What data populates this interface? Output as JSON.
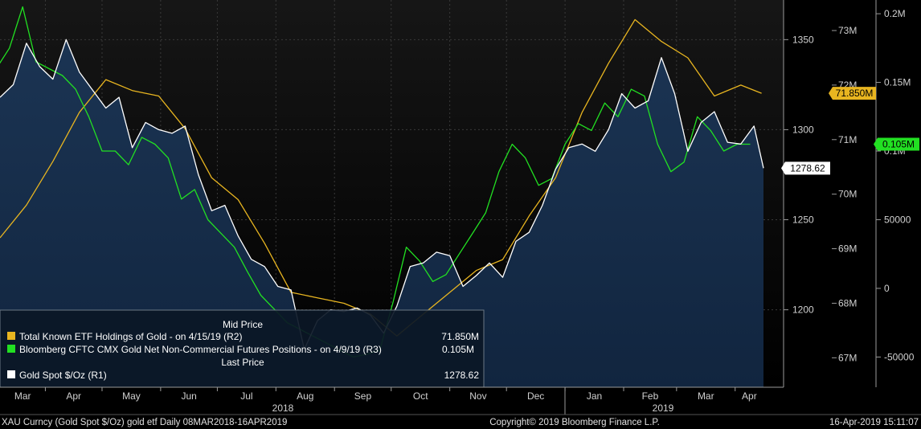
{
  "chart_data": {
    "type": "line",
    "legend": {
      "header_mid": "Mid Price",
      "header_last": "Last Price",
      "entries": [
        {
          "label": "Total Known ETF Holdings of Gold -  on 4/15/19  (R2)",
          "value": "71.850M",
          "color": "#e8b520"
        },
        {
          "label": "Bloomberg CFTC CMX Gold Net Non-Commercial Futures Positions -  on 4/9/19  (R3)",
          "value": "0.105M",
          "color": "#22e022"
        },
        {
          "label": "Gold Spot $/Oz  (R1)",
          "value": "1278.62",
          "color": "#ffffff"
        }
      ]
    },
    "axes": {
      "r1": {
        "ticks": [
          "1350",
          "1300",
          "1250",
          "1200"
        ],
        "tick_values": [
          1350,
          1300,
          1250,
          1200
        ],
        "ylim": [
          1157,
          1372
        ]
      },
      "r2": {
        "ticks": [
          "73M",
          "72M",
          "71M",
          "70M",
          "69M",
          "68M",
          "67M"
        ],
        "tick_values": [
          73,
          72,
          71,
          70,
          69,
          68,
          67
        ],
        "ylim": [
          66.46,
          73.56
        ]
      },
      "r3": {
        "ticks": [
          "0.2M",
          "0.15M",
          "0.1M",
          "50000",
          "0",
          "-50000"
        ],
        "tick_values": [
          200000,
          150000,
          100000,
          50000,
          0,
          -50000
        ],
        "ylim": [
          -72000,
          210000
        ]
      }
    },
    "x_months": [
      "Mar",
      "Apr",
      "May",
      "Jun",
      "Jul",
      "Aug",
      "Sep",
      "Oct",
      "Nov",
      "Dec",
      "Jan",
      "Feb",
      "Mar",
      "Apr"
    ],
    "x_years": [
      "2018",
      "2019"
    ],
    "tags": [
      {
        "text": "71.850M",
        "series": "etf"
      },
      {
        "text": "0.105M",
        "series": "cftc"
      },
      {
        "text": "1278.62",
        "series": "gold"
      }
    ],
    "series": [
      {
        "key": "gold",
        "axis": "r1",
        "color": "#ffffff",
        "x": [
          "2018-03-08",
          "2018-03-15",
          "2018-03-22",
          "2018-03-29",
          "2018-04-05",
          "2018-04-12",
          "2018-04-19",
          "2018-04-26",
          "2018-05-03",
          "2018-05-10",
          "2018-05-17",
          "2018-05-24",
          "2018-05-31",
          "2018-06-07",
          "2018-06-14",
          "2018-06-21",
          "2018-06-28",
          "2018-07-05",
          "2018-07-12",
          "2018-07-19",
          "2018-07-26",
          "2018-08-02",
          "2018-08-09",
          "2018-08-16",
          "2018-08-23",
          "2018-08-30",
          "2018-09-06",
          "2018-09-13",
          "2018-09-20",
          "2018-09-27",
          "2018-10-04",
          "2018-10-11",
          "2018-10-18",
          "2018-10-25",
          "2018-11-01",
          "2018-11-08",
          "2018-11-15",
          "2018-11-22",
          "2018-11-29",
          "2018-12-06",
          "2018-12-13",
          "2018-12-20",
          "2018-12-27",
          "2019-01-03",
          "2019-01-10",
          "2019-01-17",
          "2019-01-24",
          "2019-01-31",
          "2019-02-07",
          "2019-02-14",
          "2019-02-21",
          "2019-02-28",
          "2019-03-07",
          "2019-03-14",
          "2019-03-21",
          "2019-03-28",
          "2019-04-04",
          "2019-04-11",
          "2019-04-16"
        ],
        "y": [
          1318,
          1325,
          1348,
          1335,
          1328,
          1350,
          1332,
          1322,
          1312,
          1318,
          1290,
          1304,
          1300,
          1298,
          1302,
          1275,
          1255,
          1258,
          1241,
          1228,
          1224,
          1213,
          1211,
          1178,
          1194,
          1200,
          1199,
          1201,
          1197,
          1187,
          1202,
          1224,
          1226,
          1232,
          1230,
          1213,
          1219,
          1226,
          1218,
          1238,
          1243,
          1258,
          1278,
          1290,
          1292,
          1288,
          1300,
          1320,
          1312,
          1316,
          1340,
          1320,
          1288,
          1304,
          1310,
          1293,
          1292,
          1302,
          1278.62
        ]
      },
      {
        "key": "etf",
        "axis": "r2",
        "color": "#e8b520",
        "x": [
          "2018-03-08",
          "2018-03-22",
          "2018-04-05",
          "2018-04-19",
          "2018-05-03",
          "2018-05-17",
          "2018-05-31",
          "2018-06-14",
          "2018-06-28",
          "2018-07-12",
          "2018-07-26",
          "2018-08-09",
          "2018-08-23",
          "2018-09-06",
          "2018-09-20",
          "2018-10-04",
          "2018-10-18",
          "2018-11-01",
          "2018-11-15",
          "2018-11-29",
          "2018-12-13",
          "2018-12-27",
          "2019-01-10",
          "2019-01-24",
          "2019-02-07",
          "2019-02-21",
          "2019-03-07",
          "2019-03-21",
          "2019-04-04",
          "2019-04-15"
        ],
        "y": [
          69.2,
          69.8,
          70.6,
          71.5,
          72.1,
          71.9,
          71.8,
          71.2,
          70.3,
          69.9,
          69.1,
          68.2,
          68.1,
          68.0,
          67.8,
          67.4,
          67.8,
          68.2,
          68.6,
          68.8,
          69.6,
          70.3,
          71.5,
          72.4,
          73.2,
          72.8,
          72.5,
          71.8,
          72.0,
          71.85
        ]
      },
      {
        "key": "cftc",
        "axis": "r3",
        "color": "#22e022",
        "x": [
          "2018-03-06",
          "2018-03-13",
          "2018-03-20",
          "2018-03-27",
          "2018-04-03",
          "2018-04-10",
          "2018-04-17",
          "2018-04-24",
          "2018-05-01",
          "2018-05-08",
          "2018-05-15",
          "2018-05-22",
          "2018-05-29",
          "2018-06-05",
          "2018-06-12",
          "2018-06-19",
          "2018-06-26",
          "2018-07-03",
          "2018-07-10",
          "2018-07-17",
          "2018-07-24",
          "2018-07-31",
          "2018-08-07",
          "2018-08-14",
          "2018-08-21",
          "2018-08-28",
          "2018-09-04",
          "2018-09-11",
          "2018-09-18",
          "2018-09-25",
          "2018-10-02",
          "2018-10-09",
          "2018-10-16",
          "2018-10-23",
          "2018-10-30",
          "2018-11-06",
          "2018-11-13",
          "2018-11-20",
          "2018-11-27",
          "2018-12-04",
          "2018-12-11",
          "2018-12-18",
          "2018-12-25",
          "2019-01-01",
          "2019-01-08",
          "2019-01-15",
          "2019-01-22",
          "2019-01-29",
          "2019-02-05",
          "2019-02-12",
          "2019-02-19",
          "2019-02-26",
          "2019-03-05",
          "2019-03-12",
          "2019-03-19",
          "2019-03-26",
          "2019-04-02",
          "2019-04-09"
        ],
        "y": [
          160000,
          175000,
          205000,
          165000,
          160000,
          155000,
          145000,
          125000,
          100000,
          100000,
          90000,
          110000,
          105000,
          95000,
          65000,
          72000,
          50000,
          40000,
          30000,
          12000,
          -5000,
          -15000,
          -25000,
          -30000,
          -35000,
          -40000,
          -45000,
          -50000,
          -48000,
          -45000,
          -10000,
          30000,
          20000,
          5000,
          10000,
          25000,
          40000,
          55000,
          85000,
          105000,
          95000,
          75000,
          80000,
          105000,
          120000,
          115000,
          135000,
          125000,
          145000,
          140000,
          105000,
          85000,
          92000,
          125000,
          115000,
          100000,
          105000,
          105000
        ]
      }
    ]
  },
  "footer": {
    "left": "XAU Curncy (Gold Spot  $/Oz) gold etf  Daily 08MAR2018-16APR2019",
    "center": "Copyright© 2019 Bloomberg Finance L.P.",
    "right": "16-Apr-2019 15:11:07"
  }
}
